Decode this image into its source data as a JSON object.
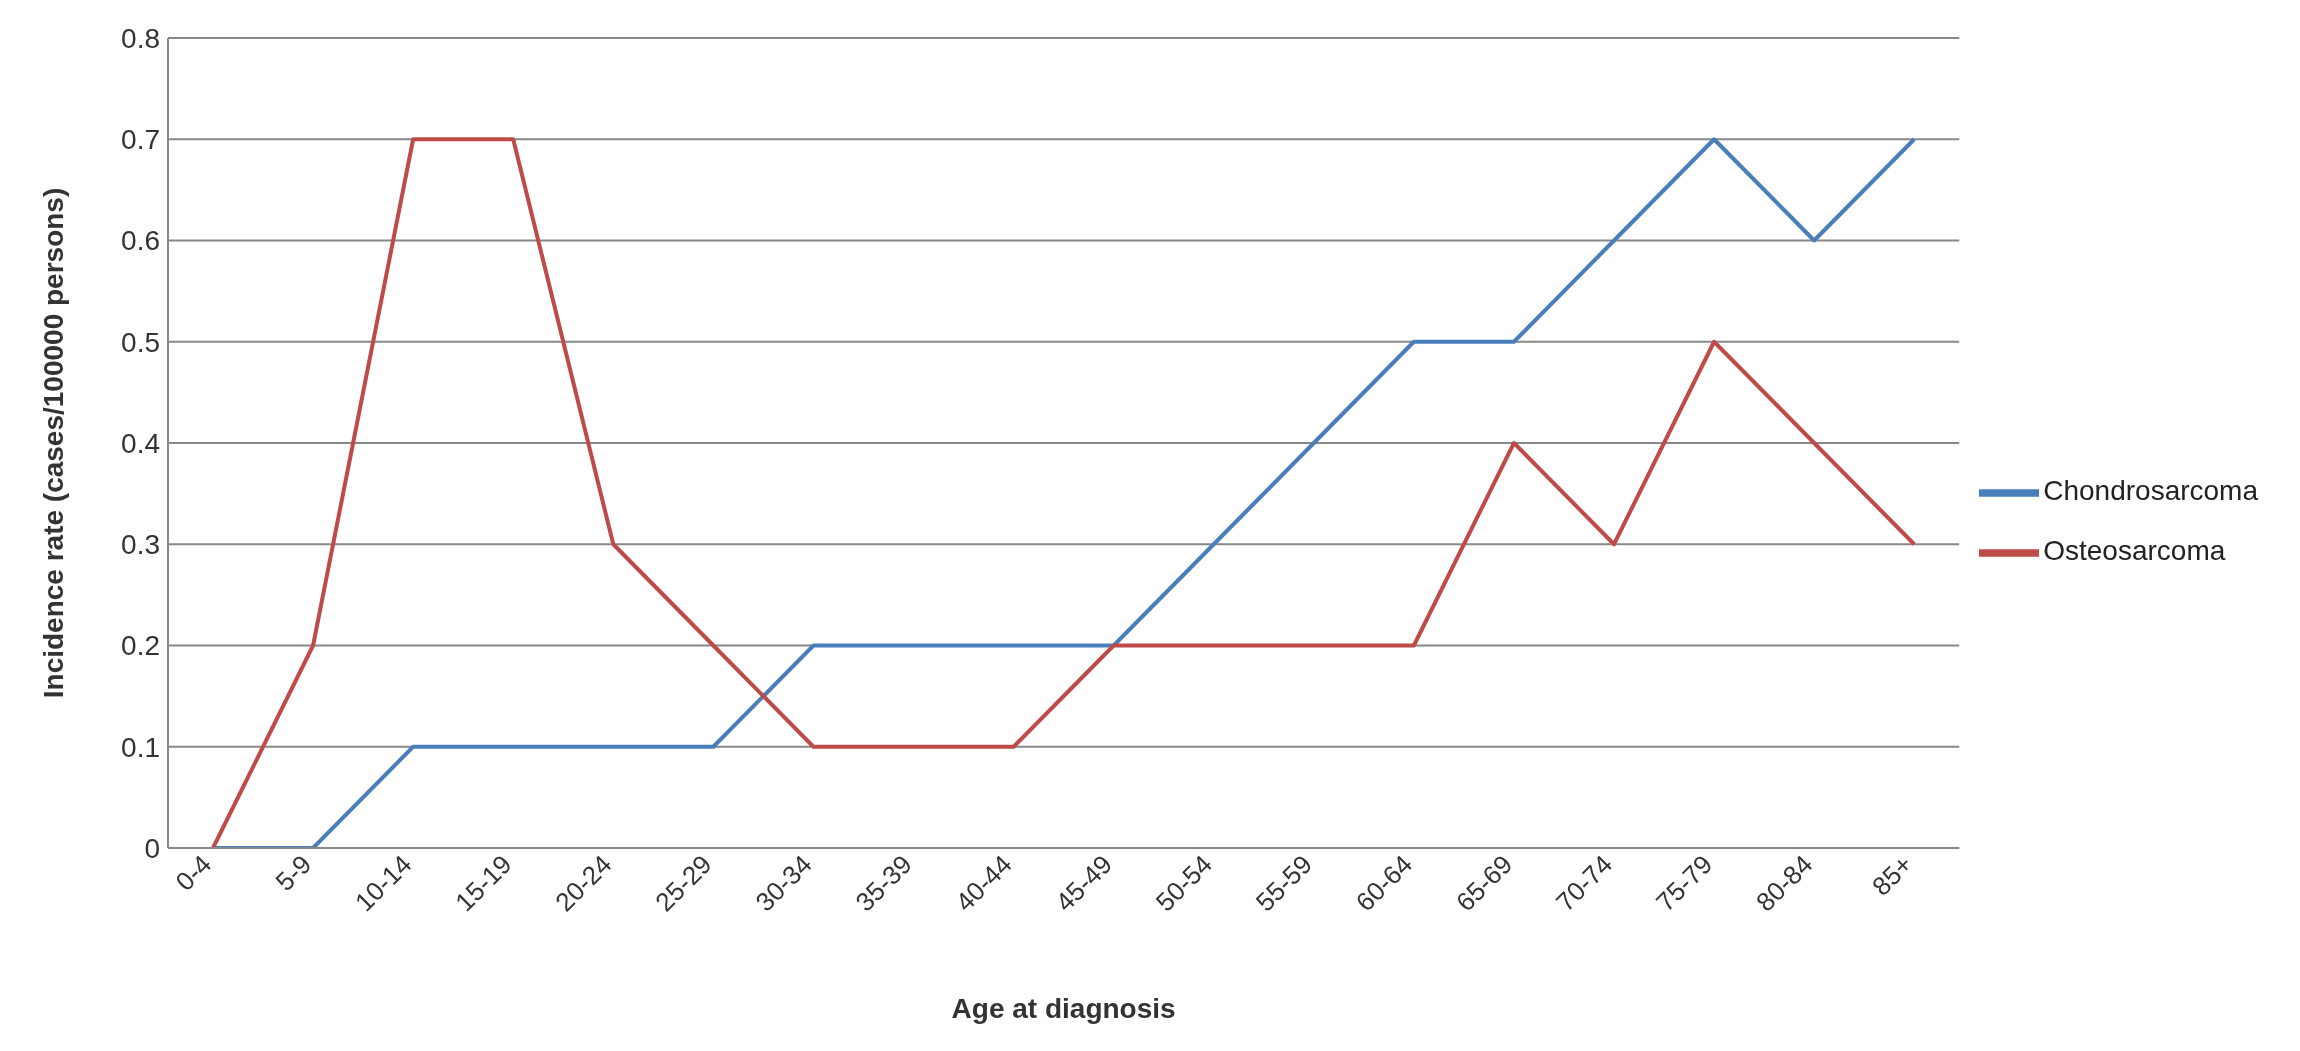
{
  "chart_data": {
    "type": "line",
    "xlabel": "Age at diagnosis",
    "ylabel": "Incidence rate (cases/100000 persons)",
    "categories": [
      "0-4",
      "5-9",
      "10-14",
      "15-19",
      "20-24",
      "25-29",
      "30-34",
      "35-39",
      "40-44",
      "45-49",
      "50-54",
      "55-59",
      "60-64",
      "65-69",
      "70-74",
      "75-79",
      "80-84",
      "85+"
    ],
    "series": [
      {
        "name": "Chondrosarcoma",
        "color": "#4a7ebb",
        "values": [
          0,
          0,
          0.1,
          0.1,
          0.1,
          0.1,
          0.2,
          0.2,
          0.2,
          0.2,
          0.3,
          0.4,
          0.5,
          0.5,
          0.6,
          0.7,
          0.6,
          0.7
        ]
      },
      {
        "name": "Osteosarcoma",
        "color": "#be4b48",
        "values": [
          0,
          0.2,
          0.7,
          0.7,
          0.3,
          0.2,
          0.1,
          0.1,
          0.1,
          0.2,
          0.2,
          0.2,
          0.2,
          0.4,
          0.3,
          0.5,
          0.4,
          0.3
        ]
      }
    ],
    "ylim": [
      0,
      0.8
    ],
    "yticks": [
      0,
      0.1,
      0.2,
      0.3,
      0.4,
      0.5,
      0.6,
      0.7,
      0.8
    ],
    "grid": "y",
    "legend": "right",
    "marker": "none",
    "line_style": "solid"
  }
}
